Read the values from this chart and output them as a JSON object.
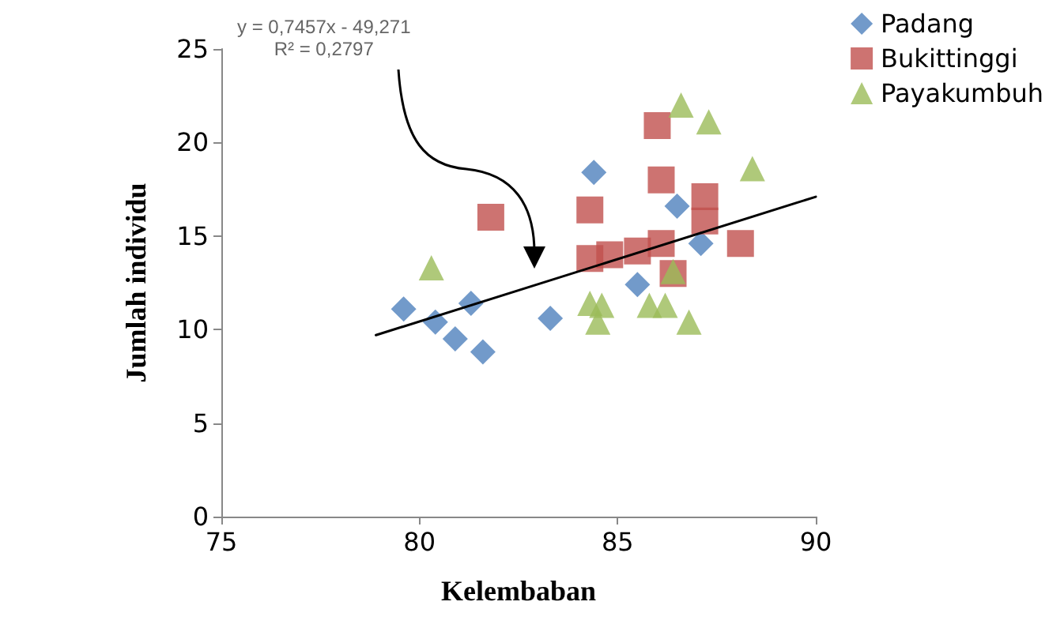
{
  "chart_data": {
    "type": "scatter",
    "xlabel": "Kelembaban",
    "ylabel": "Jumlah individu",
    "annotations": [
      "y = 0,7457x - 49,271",
      "R² = 0,2797"
    ],
    "xlim": [
      75,
      90
    ],
    "xticks": [
      75,
      80,
      85,
      90
    ],
    "ylim": [
      0,
      25
    ],
    "yticks": [
      0,
      5,
      10,
      15,
      20,
      25
    ],
    "grid": false,
    "legend": "top right",
    "series": [
      {
        "name": "Padang",
        "color": "#4f81bd",
        "marker": "diamond",
        "x": [
          79.6,
          80.4,
          80.9,
          81.3,
          81.6,
          83.3,
          84.4,
          85.5,
          86.5,
          87.1
        ],
        "values": [
          11.1,
          10.4,
          9.5,
          11.4,
          8.8,
          10.6,
          18.4,
          12.4,
          16.6,
          14.6
        ]
      },
      {
        "name": "Bukittinggi",
        "color": "#c0504d",
        "marker": "square",
        "x": [
          81.8,
          86.0,
          86.1,
          84.3,
          87.2,
          87.2,
          88.1,
          84.3,
          84.8,
          85.5,
          86.1,
          86.4
        ],
        "values": [
          16.0,
          20.9,
          18.0,
          16.4,
          17.1,
          15.8,
          14.6,
          13.8,
          14.0,
          14.2,
          14.6,
          13.0
        ]
      },
      {
        "name": "Payakumbuh",
        "color": "#9bbb59",
        "marker": "triangle",
        "x": [
          80.3,
          86.6,
          87.3,
          88.4,
          84.3,
          84.6,
          84.5,
          85.8,
          86.2,
          86.4,
          86.8
        ],
        "values": [
          13.3,
          22.0,
          21.1,
          18.6,
          11.4,
          11.3,
          10.4,
          11.3,
          11.3,
          13.1,
          10.4
        ]
      },
      {
        "type": "line",
        "color": "#000000",
        "marker": "none",
        "x": [
          78.9,
          90.0
        ],
        "values": [
          9.7,
          17.1
        ]
      }
    ]
  }
}
